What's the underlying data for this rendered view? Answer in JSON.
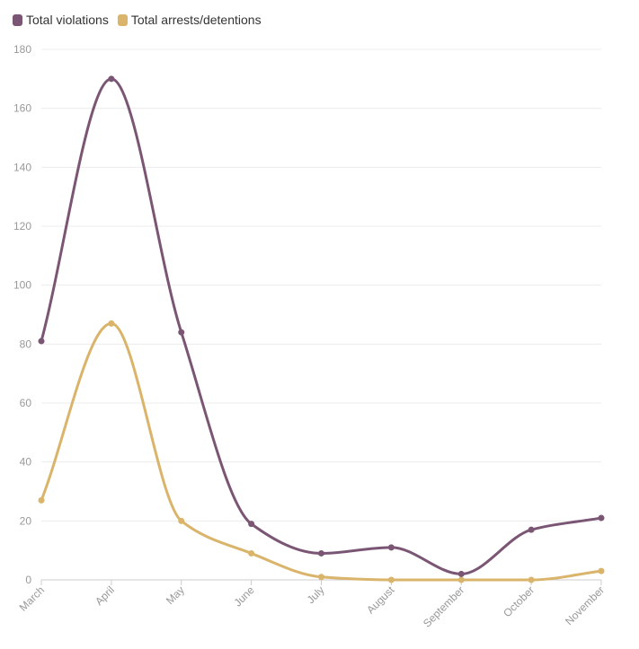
{
  "chart_data": {
    "type": "line",
    "title": "",
    "xlabel": "",
    "ylabel": "",
    "categories": [
      "March",
      "April",
      "May",
      "June",
      "July",
      "August",
      "September",
      "October",
      "November"
    ],
    "series": [
      {
        "name": "Total violations",
        "color": "#7b5674",
        "values": [
          81,
          170,
          84,
          19,
          9,
          11,
          2,
          17,
          21
        ]
      },
      {
        "name": "Total arrests/detentions",
        "color": "#d9b46a",
        "values": [
          27,
          87,
          20,
          9,
          1,
          0,
          0,
          0,
          3
        ]
      }
    ],
    "ylim": [
      0,
      180
    ],
    "yticks": [
      0,
      20,
      40,
      60,
      80,
      100,
      120,
      140,
      160,
      180
    ],
    "grid": true,
    "legend": "top-left",
    "colors": {
      "grid": "#ececec",
      "axis": "#cccccc",
      "tick_text": "#999999"
    }
  }
}
